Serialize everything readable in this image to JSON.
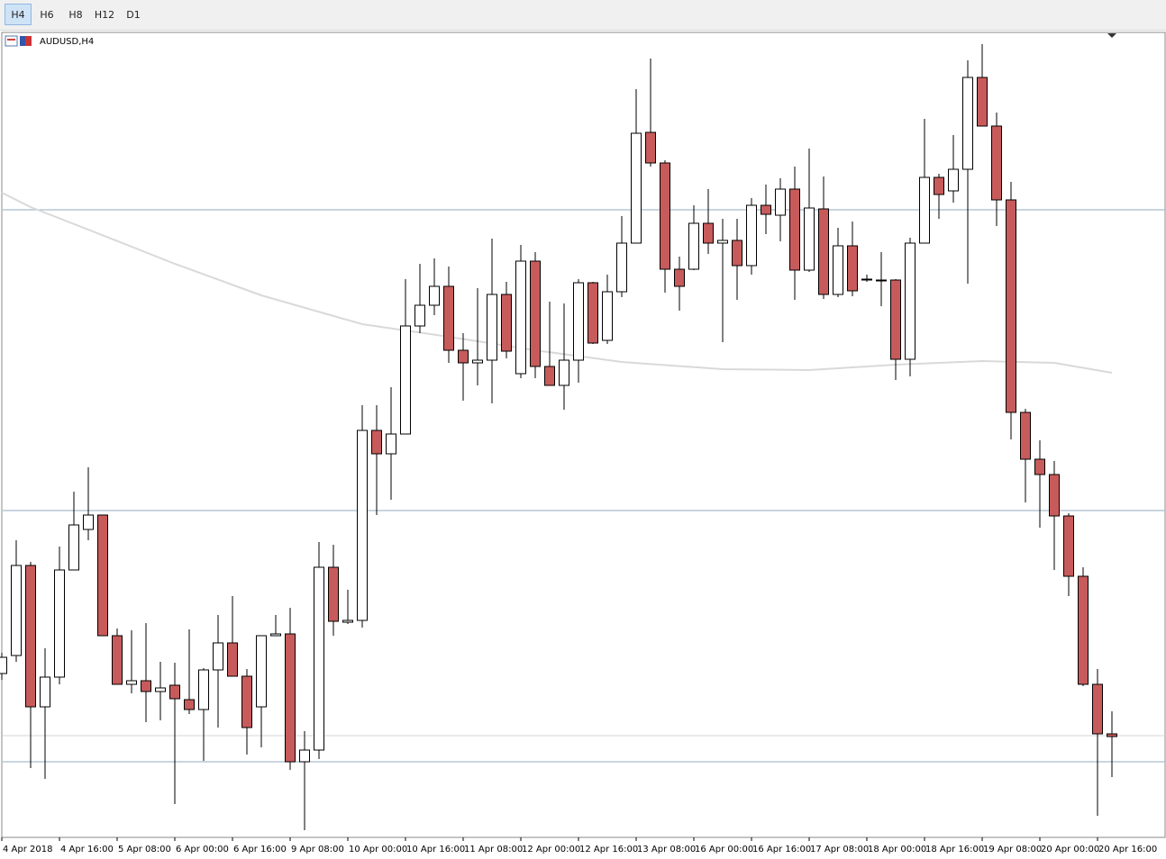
{
  "toolbar": {
    "buttons": [
      "H4",
      "H6",
      "H8",
      "H12",
      "D1"
    ],
    "active": 0
  },
  "chart_data": {
    "type": "candlestick",
    "title": "AUDUSD,H4",
    "categories": [
      "4 Apr 2018",
      null,
      null,
      null,
      "4 Apr 16:00",
      null,
      null,
      null,
      "5 Apr 08:00",
      null,
      null,
      null,
      "6 Apr 00:00",
      null,
      null,
      null,
      "6 Apr 16:00",
      null,
      null,
      null,
      "9 Apr 08:00",
      null,
      null,
      null,
      "10 Apr 00:00",
      null,
      null,
      null,
      "10 Apr 16:00",
      null,
      null,
      null,
      "11 Apr 08:00",
      null,
      null,
      null,
      "12 Apr 00:00",
      null,
      null,
      null,
      "12 Apr 16:00",
      null,
      null,
      null,
      "13 Apr 08:00",
      null,
      null,
      null,
      "16 Apr 00:00",
      null,
      null,
      null,
      "16 Apr 16:00",
      null,
      null,
      null,
      "17 Apr 08:00",
      null,
      null,
      null,
      "18 Apr 00:00",
      null,
      null,
      null,
      "18 Apr 16:00",
      null,
      null,
      null,
      "19 Apr 08:00",
      null,
      null,
      null,
      "20 Apr 00:00",
      null,
      null,
      null,
      "20 Apr 16:00",
      null
    ],
    "open": [
      252,
      272,
      372,
      215,
      248,
      367,
      412,
      428,
      294,
      240,
      244,
      232,
      239,
      223,
      212,
      256,
      286,
      249,
      215,
      294,
      296,
      154,
      167,
      370,
      309,
      311,
      522,
      496,
      518,
      638,
      661,
      682,
      611,
      597,
      600,
      673,
      585,
      710,
      593,
      572,
      600,
      686,
      622,
      676,
      730,
      853,
      819,
      701,
      701,
      752,
      730,
      733,
      705,
      772,
      761,
      790,
      700,
      768,
      673,
      727,
      690,
      689,
      689,
      601,
      730,
      803,
      788,
      812,
      914,
      860,
      778,
      542,
      490,
      473,
      427,
      360,
      240,
      185
    ],
    "high": [
      275,
      400,
      376,
      280,
      393,
      454,
      481,
      428,
      302,
      300,
      308,
      265,
      264,
      301,
      258,
      317,
      338,
      257,
      294,
      317,
      325,
      188,
      398,
      395,
      345,
      550,
      550,
      570,
      690,
      707,
      713,
      704,
      630,
      680,
      735,
      687,
      728,
      720,
      665,
      663,
      690,
      687,
      695,
      760,
      901,
      935,
      822,
      715,
      772,
      790,
      757,
      757,
      780,
      795,
      802,
      815,
      835,
      804,
      747,
      754,
      695,
      720,
      690,
      736,
      868,
      807,
      850,
      933,
      951,
      875,
      798,
      546,
      511,
      488,
      430,
      370,
      257,
      210
    ],
    "low": [
      245,
      265,
      147,
      135,
      240,
      367,
      400,
      294,
      240,
      230,
      198,
      200,
      107,
      207,
      155,
      192,
      249,
      162,
      170,
      294,
      145,
      78,
      157,
      294,
      307,
      303,
      428,
      445,
      518,
      630,
      650,
      597,
      555,
      572,
      552,
      602,
      580,
      580,
      572,
      545,
      575,
      618,
      618,
      670,
      730,
      815,
      675,
      655,
      700,
      718,
      620,
      667,
      695,
      740,
      732,
      667,
      698,
      668,
      670,
      671,
      687,
      660,
      578,
      582,
      730,
      757,
      775,
      685,
      860,
      749,
      512,
      442,
      414,
      367,
      338,
      238,
      94,
      137
    ],
    "close": [
      270,
      372,
      215,
      248,
      367,
      417,
      428,
      294,
      240,
      244,
      232,
      236,
      224,
      212,
      256,
      286,
      249,
      192,
      294,
      296,
      154,
      167,
      370,
      310,
      311,
      522,
      496,
      518,
      638,
      661,
      682,
      611,
      597,
      600,
      673,
      610,
      710,
      593,
      572,
      600,
      686,
      619,
      676,
      730,
      852,
      819,
      701,
      682,
      752,
      730,
      733,
      705,
      772,
      762,
      790,
      700,
      769,
      673,
      727,
      677,
      690,
      689,
      601,
      730,
      803,
      784,
      812,
      914,
      860,
      778,
      542,
      490,
      473,
      427,
      360,
      240,
      185,
      182
    ],
    "up_color": "#ffffff",
    "down_color": "#c75b5b",
    "ylim": [
      70,
      963
    ],
    "levels": [
      767,
      433,
      154
    ],
    "level_color": "#a9bacd",
    "price_line": 183,
    "price_line_color": "#d6d6d6",
    "moving_average": {
      "x": [
        0,
        2,
        6,
        12,
        18,
        25,
        31,
        37,
        43,
        50,
        56,
        62,
        68,
        73,
        77
      ],
      "values": [
        786,
        770,
        745,
        707,
        672,
        640,
        626,
        611,
        598,
        590,
        589,
        595,
        599,
        597,
        586
      ],
      "color": "#d9d9d9"
    }
  }
}
